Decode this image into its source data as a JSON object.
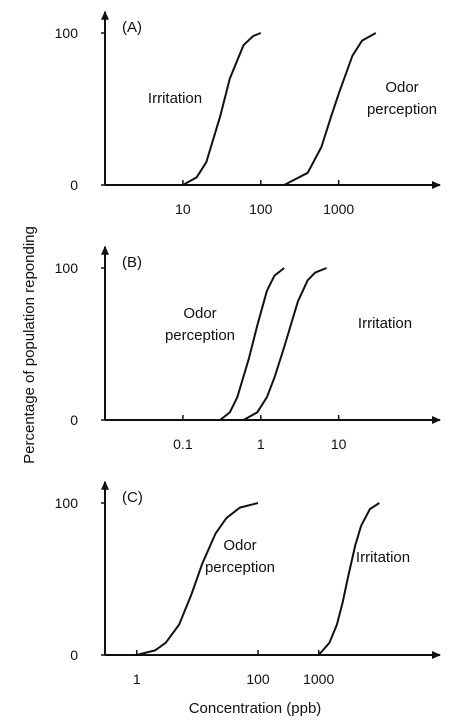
{
  "chart_data": [
    {
      "type": "line",
      "panel_label": "(A)",
      "xscale": "log",
      "xlim": [
        1,
        20000
      ],
      "ylim": [
        0,
        110
      ],
      "xticks": [
        10,
        100,
        1000
      ],
      "yticks": [
        0,
        100
      ],
      "series": [
        {
          "name": "Irritation",
          "color": "#111111",
          "x": [
            10,
            15,
            20,
            30,
            40,
            60,
            80,
            100
          ],
          "values": [
            0,
            5,
            15,
            45,
            70,
            92,
            98,
            100
          ]
        },
        {
          "name": "Odor perception",
          "color": "#111111",
          "x": [
            200,
            400,
            600,
            800,
            1000,
            1500,
            2000,
            3000
          ],
          "values": [
            0,
            8,
            25,
            45,
            60,
            85,
            95,
            100
          ]
        }
      ]
    },
    {
      "type": "line",
      "panel_label": "(B)",
      "xscale": "log",
      "xlim": [
        0.01,
        200
      ],
      "ylim": [
        0,
        110
      ],
      "xticks": [
        0.1,
        1,
        10
      ],
      "yticks": [
        0,
        100
      ],
      "ylabel": "Percentage of population reponding",
      "series": [
        {
          "name": "Odor perception",
          "color": "#111111",
          "x": [
            0.3,
            0.4,
            0.5,
            0.7,
            0.9,
            1.2,
            1.5,
            2
          ],
          "values": [
            0,
            5,
            15,
            40,
            62,
            85,
            95,
            100
          ]
        },
        {
          "name": "Irritation",
          "color": "#111111",
          "x": [
            0.6,
            0.9,
            1.2,
            1.5,
            2,
            3,
            4,
            5,
            7
          ],
          "values": [
            0,
            5,
            15,
            28,
            48,
            78,
            92,
            97,
            100
          ]
        }
      ]
    },
    {
      "type": "line",
      "panel_label": "(C)",
      "xscale": "log",
      "xlim": [
        0.3,
        100000
      ],
      "ylim": [
        0,
        110
      ],
      "xticks": [
        1,
        100,
        1000
      ],
      "yticks": [
        0,
        100
      ],
      "xlabel": "Concentration (ppb)",
      "series": [
        {
          "name": "Odor perception",
          "color": "#111111",
          "x": [
            1,
            2,
            3,
            5,
            8,
            12,
            20,
            30,
            50,
            100
          ],
          "values": [
            0,
            3,
            8,
            20,
            40,
            60,
            80,
            90,
            97,
            100
          ]
        },
        {
          "name": "Irritation",
          "color": "#111111",
          "x": [
            1000,
            1500,
            2000,
            2500,
            3000,
            4000,
            5000,
            7000,
            10000
          ],
          "values": [
            0,
            8,
            20,
            35,
            50,
            72,
            85,
            96,
            100
          ]
        }
      ]
    }
  ]
}
